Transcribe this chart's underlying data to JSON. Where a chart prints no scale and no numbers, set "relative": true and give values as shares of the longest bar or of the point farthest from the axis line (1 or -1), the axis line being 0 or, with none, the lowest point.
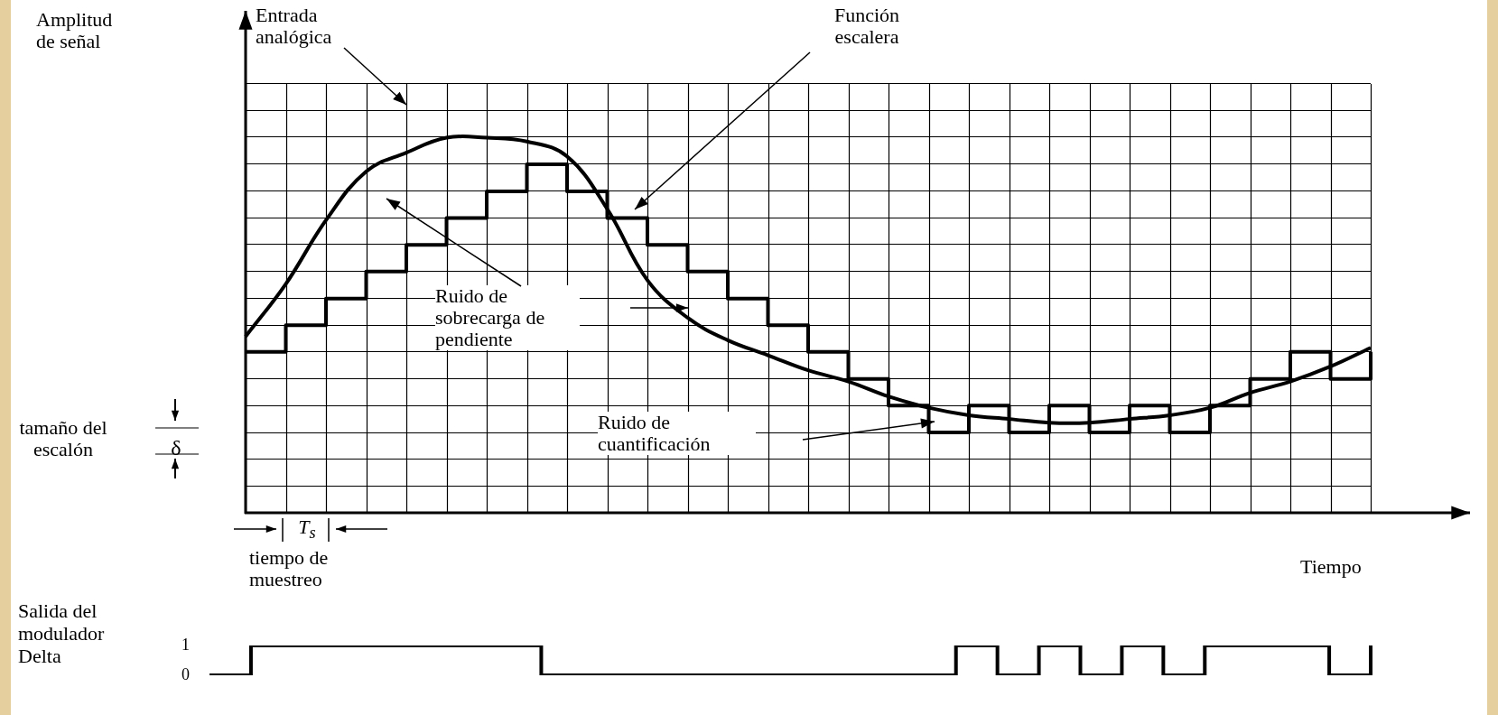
{
  "chart_data": [
    {
      "type": "line",
      "relative": true,
      "grid": true,
      "ylabel": "Amplitud de señal",
      "xlabel": "Tiempo",
      "categories": [
        null,
        null,
        null,
        null,
        null,
        null,
        null,
        null,
        null,
        null,
        null,
        null,
        null,
        null,
        null,
        null,
        null,
        null,
        null,
        null,
        null,
        null,
        null,
        null,
        null,
        null,
        null,
        null,
        null
      ],
      "series": [
        {
          "type": "line",
          "color": "#000000",
          "values": [
            0.47,
            0.61,
            0.78,
            0.91,
            0.96,
            1.0,
            1.0,
            0.99,
            0.95,
            0.81,
            0.62,
            0.52,
            0.46,
            0.42,
            0.38,
            0.35,
            0.31,
            0.28,
            0.26,
            0.25,
            0.24,
            0.24,
            0.25,
            0.26,
            0.28,
            0.32,
            0.35,
            0.39,
            0.44
          ]
        },
        {
          "type": "step",
          "color": "#000000",
          "values": [
            0.429,
            0.5,
            0.571,
            0.643,
            0.714,
            0.786,
            0.857,
            0.929,
            0.857,
            0.786,
            0.714,
            0.643,
            0.571,
            0.5,
            0.429,
            0.357,
            0.286,
            0.214,
            0.286,
            0.214,
            0.286,
            0.214,
            0.286,
            0.214,
            0.286,
            0.357,
            0.429,
            0.357,
            0.429
          ]
        }
      ],
      "annotations": [
        "Entrada analógica",
        "Función escalera",
        "Ruido de sobrecarga de pendiente",
        "Ruido de cuantificación",
        "tamaño del escalón",
        "δ",
        "T$_{s}$",
        "tiempo de muestreo"
      ]
    },
    {
      "type": "step",
      "ylabel": "Salida del modulador Delta",
      "color": "#000000",
      "ylim": [
        0,
        1
      ],
      "yticks": [
        0,
        1
      ],
      "tick_labels": "y",
      "categories": [
        null,
        null,
        null,
        null,
        null,
        null,
        null,
        null,
        null,
        null,
        null,
        null,
        null,
        null,
        null,
        null,
        null,
        null,
        null,
        null,
        null,
        null,
        null,
        null,
        null,
        null,
        null,
        null,
        null
      ],
      "values": [
        0,
        1,
        1,
        1,
        1,
        1,
        1,
        1,
        0,
        0,
        0,
        0,
        0,
        0,
        0,
        0,
        0,
        0,
        1,
        0,
        1,
        0,
        1,
        0,
        1,
        1,
        1,
        0,
        1
      ]
    }
  ]
}
